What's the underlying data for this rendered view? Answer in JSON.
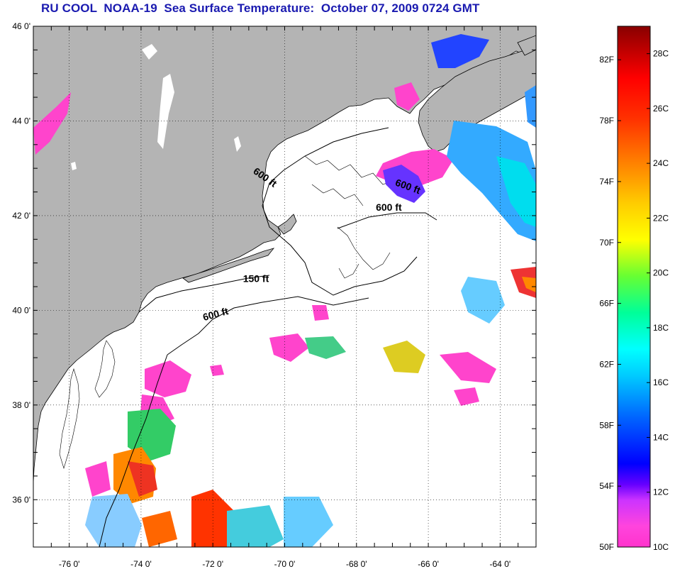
{
  "title": "RU COOL  NOAA-19  Sea Surface Temperature:  October 07, 2009 0724 GMT",
  "map": {
    "lon_range": [
      -77.0,
      -63.0
    ],
    "lat_range": [
      35.0,
      46.0
    ],
    "lon_ticks": [
      {
        "value": -76,
        "label": "-76 0'"
      },
      {
        "value": -74,
        "label": "-74 0'"
      },
      {
        "value": -72,
        "label": "-72 0'"
      },
      {
        "value": -70,
        "label": "-70 0'"
      },
      {
        "value": -68,
        "label": "-68 0'"
      },
      {
        "value": -66,
        "label": "-66 0'"
      },
      {
        "value": -64,
        "label": "-64 0'"
      }
    ],
    "lat_ticks": [
      {
        "value": 46,
        "label": "46 0'"
      },
      {
        "value": 44,
        "label": "44 0'"
      },
      {
        "value": 42,
        "label": "42 0'"
      },
      {
        "value": 40,
        "label": "40 0'"
      },
      {
        "value": 38,
        "label": "38 0'"
      },
      {
        "value": 36,
        "label": "36 0'"
      }
    ],
    "grid": "dotted",
    "land_color": "#b4b4b4",
    "ocean_color": "#ffffff",
    "contour_labels": [
      {
        "text": "600 ft",
        "lon": -70.6,
        "lat": 42.75,
        "rotate": 35
      },
      {
        "text": "600 ft",
        "lon": -66.6,
        "lat": 42.55,
        "rotate": 20
      },
      {
        "text": "600 ft",
        "lon": -67.1,
        "lat": 42.1,
        "rotate": 0
      },
      {
        "text": "150 ft",
        "lon": -70.8,
        "lat": 40.6,
        "rotate": 0
      },
      {
        "text": "600 ft",
        "lon": -71.9,
        "lat": 39.85,
        "rotate": -15
      }
    ]
  },
  "colorbar": {
    "range_c": [
      10,
      29
    ],
    "fahrenheit_labels": [
      "82F",
      "78F",
      "74F",
      "70F",
      "66F",
      "62F",
      "58F",
      "54F",
      "50F"
    ],
    "fahrenheit_values": [
      82,
      78,
      74,
      70,
      66,
      62,
      58,
      54,
      50
    ],
    "celsius_labels": [
      "28C",
      "26C",
      "24C",
      "22C",
      "20C",
      "18C",
      "16C",
      "14C",
      "12C",
      "10C"
    ],
    "celsius_values": [
      28,
      26,
      24,
      22,
      20,
      18,
      16,
      14,
      12,
      10
    ]
  }
}
